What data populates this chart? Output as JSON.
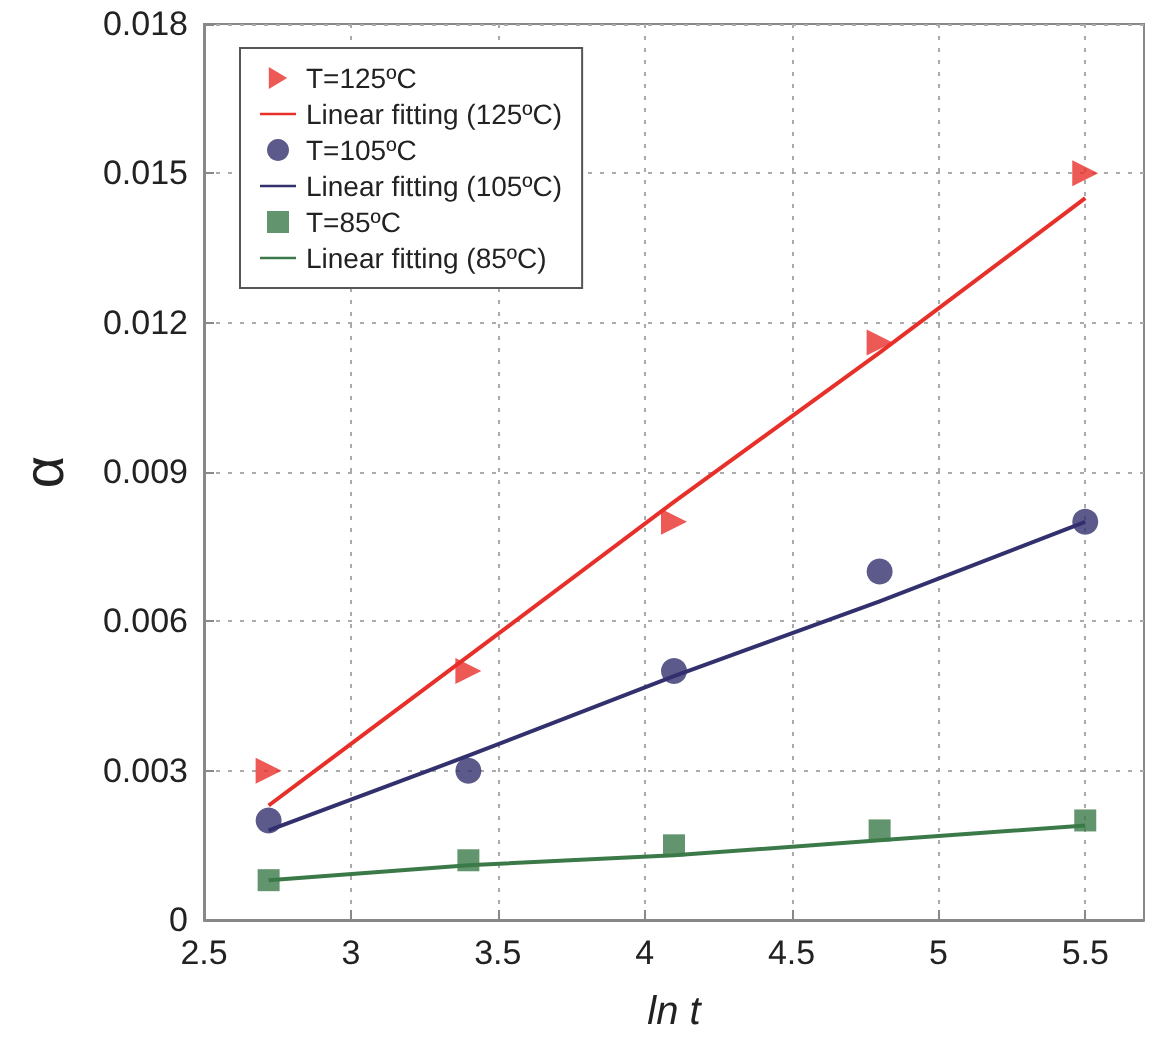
{
  "chart_data": {
    "type": "scatter",
    "xlabel": "ln t",
    "ylabel": "α",
    "x": [
      2.72,
      3.4,
      4.1,
      4.8,
      5.5
    ],
    "series": [
      {
        "name": "T=125ºC",
        "color": "#e8302a",
        "marker": "triangle",
        "values": [
          0.003,
          0.005,
          0.008,
          0.0116,
          0.015
        ]
      },
      {
        "name": "Linear fitting (125ºC)",
        "type": "line",
        "color": "#e8302a",
        "marker": "none",
        "values": [
          0.0023,
          0.0053,
          0.0084,
          0.0114,
          0.0145
        ]
      },
      {
        "name": "T=105ºC",
        "color": "#33306e",
        "marker": "circle",
        "values": [
          0.002,
          0.003,
          0.005,
          0.007,
          0.008
        ]
      },
      {
        "name": "Linear fitting (105ºC)",
        "type": "line",
        "color": "#33306e",
        "marker": "none",
        "values": [
          0.0018,
          0.0033,
          0.0049,
          0.0064,
          0.008
        ]
      },
      {
        "name": "T=85ºC",
        "color": "#3b7a48",
        "marker": "square",
        "values": [
          0.0008,
          0.0012,
          0.0015,
          0.0018,
          0.002
        ]
      },
      {
        "name": "Linear fitting (85ºC)",
        "type": "line",
        "color": "#3b7a48",
        "marker": "none",
        "values": [
          0.0008,
          0.0011,
          0.0013,
          0.0016,
          0.0019
        ]
      }
    ],
    "xlim": [
      2.5,
      5.7
    ],
    "xticks": [
      2.5,
      3,
      3.5,
      4,
      4.5,
      5,
      5.5
    ],
    "ylim": [
      0,
      0.018
    ],
    "yticks": [
      0,
      0.003,
      0.006,
      0.009,
      0.012,
      0.015,
      0.018
    ],
    "grid": true,
    "legend": "top left"
  }
}
